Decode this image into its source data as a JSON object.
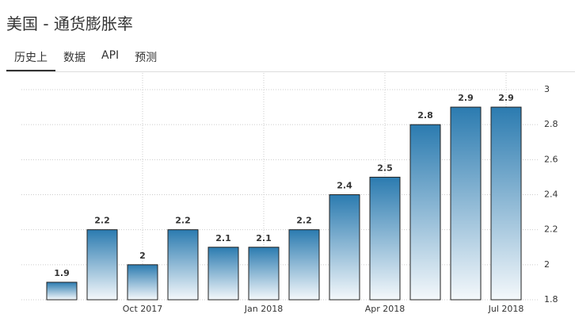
{
  "header": {
    "title": "美国 - 通货膨胀率"
  },
  "tabs": [
    "历史上",
    "数据",
    "API",
    "预测"
  ],
  "chart_data": {
    "type": "bar",
    "categories": [
      null,
      null,
      "Oct 2017",
      null,
      null,
      "Jan 2018",
      null,
      null,
      "Apr 2018",
      null,
      null,
      "Jul 2018"
    ],
    "values": [
      1.9,
      2.2,
      2,
      2.2,
      2.1,
      2.1,
      2.2,
      2.4,
      2.5,
      2.8,
      2.9,
      2.9
    ],
    "color": "#2b7bb0",
    "ylim": [
      1.8,
      3
    ],
    "yticks": [
      1.8,
      2,
      2.2,
      2.4,
      2.6,
      2.8,
      3
    ],
    "grid": true
  }
}
